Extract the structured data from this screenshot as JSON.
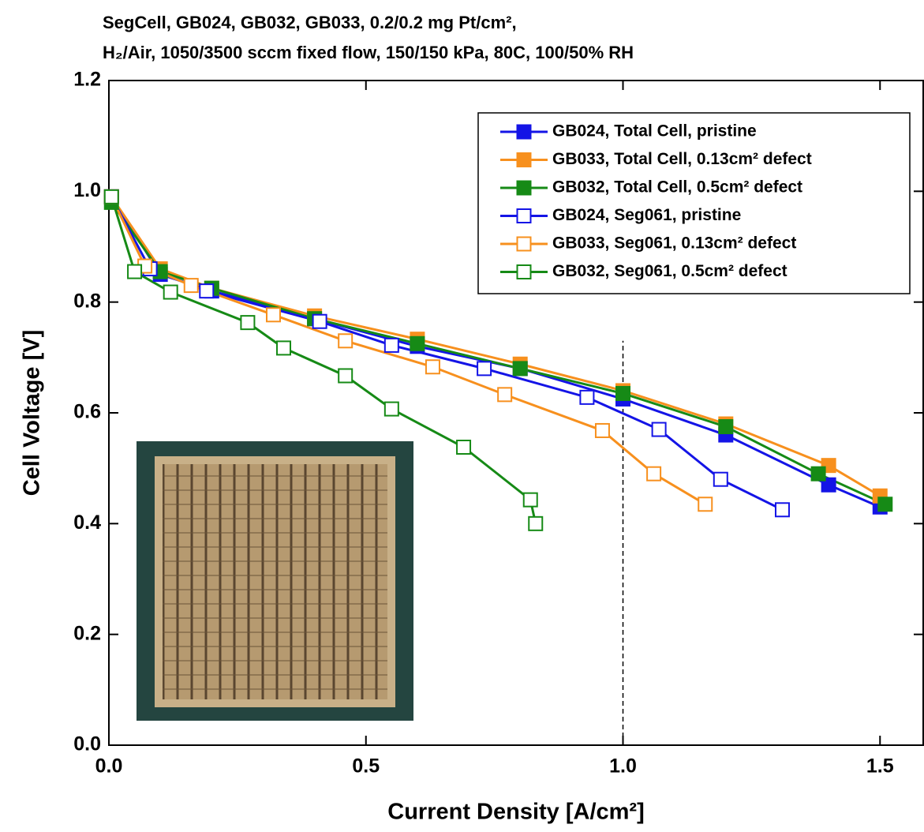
{
  "chart_data": {
    "type": "line",
    "title": [
      "SegCell, GB024, GB032, GB033, 0.2/0.2 mg Pt/cm²,",
      "H₂/Air, 1050/3500 sccm fixed flow, 150/150 kPa, 80C, 100/50% RH"
    ],
    "x_label": "Current Density [A/cm²]",
    "y_label": "Cell Voltage [V]",
    "xlim": [
      0,
      1.584
    ],
    "ylim": [
      0,
      1.2
    ],
    "xticks": [
      {
        "value": 0,
        "label": "0.0"
      },
      0.5,
      {
        "value": 1,
        "label": "1.0"
      },
      1.5
    ],
    "yticks": [
      {
        "value": 0,
        "label": "0.0"
      },
      0.2,
      0.4,
      0.6,
      0.8,
      {
        "value": 1,
        "label": "1.0"
      },
      1.2
    ],
    "reference_line_x": 1.0,
    "legend": "upper right",
    "series": [
      {
        "name": "GB024, Total Cell, pristine",
        "color": "#1414e6",
        "marker": "filled",
        "x": [
          0.005,
          0.1,
          0.2,
          0.4,
          0.6,
          0.8,
          1.0,
          1.2,
          1.4,
          1.5
        ],
        "values": [
          0.99,
          0.85,
          0.82,
          0.77,
          0.72,
          0.68,
          0.625,
          0.56,
          0.47,
          0.43
        ]
      },
      {
        "name": "GB033, Total Cell, 0.13cm² defect",
        "color": "#f7901e",
        "marker": "filled",
        "x": [
          0.005,
          0.1,
          0.2,
          0.4,
          0.6,
          0.8,
          1.0,
          1.2,
          1.4,
          1.5
        ],
        "values": [
          0.99,
          0.86,
          0.825,
          0.775,
          0.733,
          0.688,
          0.64,
          0.58,
          0.505,
          0.45
        ]
      },
      {
        "name": "GB032, Total Cell, 0.5cm² defect",
        "color": "#168a16",
        "marker": "filled",
        "x": [
          0.005,
          0.1,
          0.2,
          0.4,
          0.6,
          0.8,
          1.0,
          1.2,
          1.38,
          1.51
        ],
        "values": [
          0.98,
          0.855,
          0.825,
          0.77,
          0.725,
          0.68,
          0.635,
          0.575,
          0.49,
          0.435
        ]
      },
      {
        "name": "GB024, Seg061, pristine",
        "color": "#1414e6",
        "marker": "open",
        "x": [
          0.005,
          0.08,
          0.19,
          0.41,
          0.55,
          0.73,
          0.93,
          1.07,
          1.19,
          1.31
        ],
        "values": [
          0.99,
          0.86,
          0.82,
          0.765,
          0.722,
          0.68,
          0.628,
          0.57,
          0.48,
          0.425
        ]
      },
      {
        "name": "GB033, Seg061, 0.13cm² defect",
        "color": "#f7901e",
        "marker": "open",
        "x": [
          0.005,
          0.07,
          0.16,
          0.32,
          0.46,
          0.63,
          0.77,
          0.96,
          1.06,
          1.16
        ],
        "values": [
          0.99,
          0.865,
          0.83,
          0.777,
          0.73,
          0.683,
          0.633,
          0.568,
          0.49,
          0.435
        ]
      },
      {
        "name": "GB032, Seg061, 0.5cm² defect",
        "color": "#168a16",
        "marker": "open",
        "x": [
          0.005,
          0.05,
          0.12,
          0.27,
          0.34,
          0.46,
          0.55,
          0.69,
          0.82,
          0.83
        ],
        "values": [
          0.99,
          0.855,
          0.818,
          0.763,
          0.717,
          0.667,
          0.607,
          0.538,
          0.443,
          0.4
        ]
      }
    ]
  }
}
